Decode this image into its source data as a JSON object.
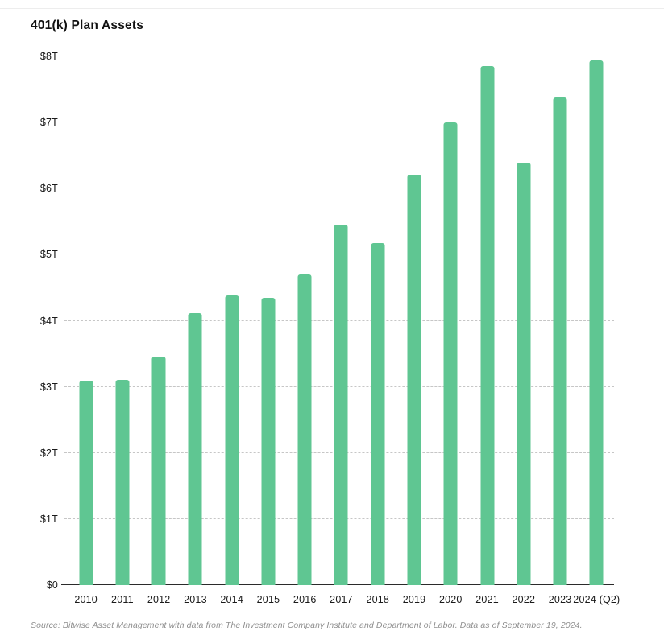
{
  "page": {
    "title": "401(k) Plan Assets",
    "source_note": "Source: Bitwise Asset Management with data from The Investment Company Institute and Department of Labor. Data as of September 19, 2024."
  },
  "chart_data": {
    "type": "bar",
    "title": "401(k) Plan Assets",
    "categories": [
      "2010",
      "2011",
      "2012",
      "2013",
      "2014",
      "2015",
      "2016",
      "2017",
      "2018",
      "2019",
      "2020",
      "2021",
      "2022",
      "2023",
      "2024 (Q2)"
    ],
    "values": [
      3.09,
      3.1,
      3.46,
      4.12,
      4.38,
      4.35,
      4.7,
      5.45,
      5.17,
      6.21,
      7.0,
      7.86,
      6.39,
      7.38,
      7.94
    ],
    "unit": "trillions of USD",
    "xlabel": "",
    "ylabel": "",
    "ylim": [
      0,
      8
    ],
    "y_ticks": [
      {
        "value": 0,
        "label": "$0"
      },
      {
        "value": 1,
        "label": "$1T"
      },
      {
        "value": 2,
        "label": "$2T"
      },
      {
        "value": 3,
        "label": "$3T"
      },
      {
        "value": 4,
        "label": "$4T"
      },
      {
        "value": 5,
        "label": "$5T"
      },
      {
        "value": 6,
        "label": "$6T"
      },
      {
        "value": 7,
        "label": "$7T"
      },
      {
        "value": 8,
        "label": "$8T"
      }
    ],
    "grid": "horizontal-dashed",
    "legend": "none",
    "bar_color": "#5fc692",
    "source": "Source: Bitwise Asset Management with data from The Investment Company Institute and Department of Labor. Data as of September 19, 2024."
  }
}
